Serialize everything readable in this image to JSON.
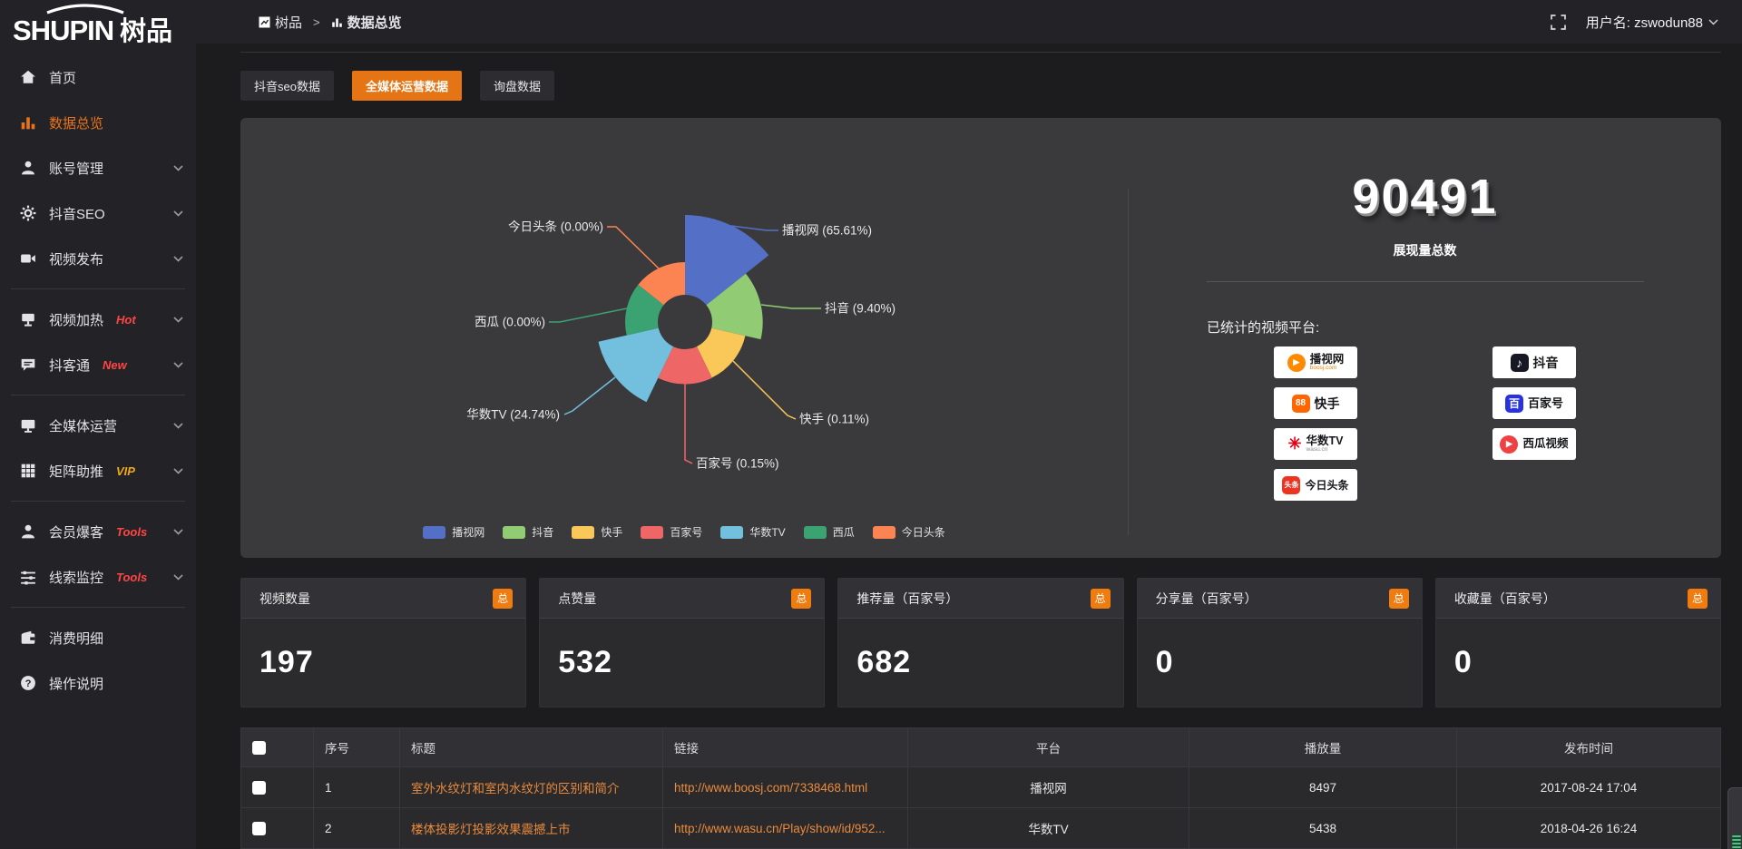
{
  "logo": {
    "en": "SHUPIN",
    "cn": "树品"
  },
  "topbar": {
    "breadcrumb_home": "树品",
    "breadcrumb_sep": ">",
    "breadcrumb_current": "数据总览",
    "username": "用户名: zswodun88"
  },
  "tabs": [
    {
      "label": "抖音seo数据",
      "active": false
    },
    {
      "label": "全媒体运营数据",
      "active": true
    },
    {
      "label": "询盘数据",
      "active": false
    }
  ],
  "sidebar": {
    "groups": [
      {
        "items": [
          {
            "label": "首页",
            "icon": "home-icon",
            "badge": ""
          },
          {
            "label": "数据总览",
            "icon": "bar-chart-icon",
            "badge": "",
            "active": true
          },
          {
            "label": "账号管理",
            "icon": "user-icon",
            "badge": "",
            "chevron": true
          },
          {
            "label": "抖音SEO",
            "icon": "gear-icon",
            "badge": "",
            "chevron": true
          },
          {
            "label": "视频发布",
            "icon": "video-camera-icon",
            "badge": "",
            "chevron": true
          }
        ]
      },
      {
        "items": [
          {
            "label": "视频加热",
            "icon": "screen-icon",
            "badge": "Hot",
            "badge_color": "#ff4545",
            "chevron": true
          },
          {
            "label": "抖客通",
            "icon": "chat-icon",
            "badge": "New",
            "badge_color": "#ff4545",
            "chevron": true
          }
        ]
      },
      {
        "items": [
          {
            "label": "全媒体运营",
            "icon": "monitor-icon",
            "badge": "",
            "chevron": true
          },
          {
            "label": "矩阵助推",
            "icon": "grid-icon",
            "badge": "VIP",
            "badge_color": "#f0a818",
            "chevron": true
          }
        ]
      },
      {
        "items": [
          {
            "label": "会员爆客",
            "icon": "member-icon",
            "badge": "Tools",
            "badge_color": "#ff4545",
            "chevron": true
          },
          {
            "label": "线索监控",
            "icon": "sliders-icon",
            "badge": "Tools",
            "badge_color": "#ff4545",
            "chevron": true
          }
        ]
      },
      {
        "items": [
          {
            "label": "消费明细",
            "icon": "wallet-icon",
            "badge": ""
          },
          {
            "label": "操作说明",
            "icon": "question-icon",
            "badge": ""
          }
        ]
      }
    ]
  },
  "chart_data": {
    "type": "pie",
    "rose": true,
    "legend_position": "bottom",
    "slices": [
      {
        "name": "播视网",
        "pct": 65.61,
        "label": "播视网 (65.61%)",
        "color": "#5470c6"
      },
      {
        "name": "抖音",
        "pct": 9.4,
        "label": "抖音 (9.40%)",
        "color": "#91cc75"
      },
      {
        "name": "快手",
        "pct": 0.11,
        "label": "快手 (0.11%)",
        "color": "#fac858"
      },
      {
        "name": "百家号",
        "pct": 0.15,
        "label": "百家号 (0.15%)",
        "color": "#ee6666"
      },
      {
        "name": "华数TV",
        "pct": 24.74,
        "label": "华数TV (24.74%)",
        "color": "#73c0de"
      },
      {
        "name": "西瓜",
        "pct": 0.0,
        "label": "西瓜 (0.00%)",
        "color": "#3ba272"
      },
      {
        "name": "今日头条",
        "pct": 0.0,
        "label": "今日头条 (0.00%)",
        "color": "#fc8452"
      }
    ],
    "legend": [
      "播视网",
      "抖音",
      "快手",
      "百家号",
      "华数TV",
      "西瓜",
      "今日头条"
    ]
  },
  "summary": {
    "total": "90491",
    "total_label": "展现量总数",
    "platforms_label": "已统计的视频平台:",
    "platforms": [
      {
        "name": "播视网",
        "sub": "boosj.com",
        "logo_color": "#ff8a00"
      },
      {
        "name": "抖音",
        "sub": "",
        "logo_color": "#161823"
      },
      {
        "name": "快手",
        "sub": "",
        "logo_color": "#ff6600"
      },
      {
        "name": "百家号",
        "sub": "",
        "logo_color": "#2932e1"
      },
      {
        "name": "华数TV",
        "sub": "wasu.cn",
        "logo_color": "#e60012"
      },
      {
        "name": "西瓜视频",
        "sub": "",
        "logo_color": "#f04142"
      },
      {
        "name": "今日头条",
        "sub": "",
        "logo_color": "#ed3321"
      }
    ]
  },
  "stat_cards": [
    {
      "label": "视频数量",
      "badge": "总",
      "value": "197"
    },
    {
      "label": "点赞量",
      "badge": "总",
      "value": "532"
    },
    {
      "label": "推荐量（百家号）",
      "badge": "总",
      "value": "682"
    },
    {
      "label": "分享量（百家号）",
      "badge": "总",
      "value": "0"
    },
    {
      "label": "收藏量（百家号）",
      "badge": "总",
      "value": "0"
    }
  ],
  "table": {
    "headers": [
      "序号",
      "标题",
      "链接",
      "平台",
      "播放量",
      "发布时间"
    ],
    "rows": [
      {
        "index": "1",
        "title": "室外水纹灯和室内水纹灯的区别和简介",
        "link": "http://www.boosj.com/7338468.html",
        "platform": "播视网",
        "views": "8497",
        "time": "2017-08-24 17:04"
      },
      {
        "index": "2",
        "title": "楼体投影灯投影效果震撼上市",
        "link": "http://www.wasu.cn/Play/show/id/952...",
        "platform": "华数TV",
        "views": "5438",
        "time": "2018-04-26 16:24"
      },
      {
        "index": "",
        "title": "",
        "link": "",
        "platform": "",
        "views": "",
        "time": ""
      }
    ]
  }
}
